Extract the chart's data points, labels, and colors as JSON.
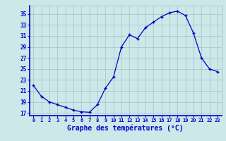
{
  "hours": [
    0,
    1,
    2,
    3,
    4,
    5,
    6,
    7,
    8,
    9,
    10,
    11,
    12,
    13,
    14,
    15,
    16,
    17,
    18,
    19,
    20,
    21,
    22,
    23
  ],
  "temps": [
    22.0,
    20.0,
    19.0,
    18.5,
    18.0,
    17.5,
    17.2,
    17.1,
    18.5,
    21.5,
    23.5,
    29.0,
    31.2,
    30.5,
    32.5,
    33.5,
    34.5,
    35.2,
    35.5,
    34.7,
    31.5,
    27.0,
    25.0,
    24.5
  ],
  "line_color": "#0000bb",
  "marker": "+",
  "bg_color": "#cce8e8",
  "grid_color": "#a8c8d0",
  "axis_label_color": "#0000cc",
  "tick_color": "#0000cc",
  "xlabel": "Graphe des températures (°C)",
  "xlabel_fontsize": 7,
  "ylim": [
    16.5,
    36.5
  ],
  "yticks": [
    17,
    19,
    21,
    23,
    25,
    27,
    29,
    31,
    33,
    35
  ],
  "xlim": [
    -0.5,
    23.5
  ],
  "xticks": [
    0,
    1,
    2,
    3,
    4,
    5,
    6,
    7,
    8,
    9,
    10,
    11,
    12,
    13,
    14,
    15,
    16,
    17,
    18,
    19,
    20,
    21,
    22,
    23
  ]
}
